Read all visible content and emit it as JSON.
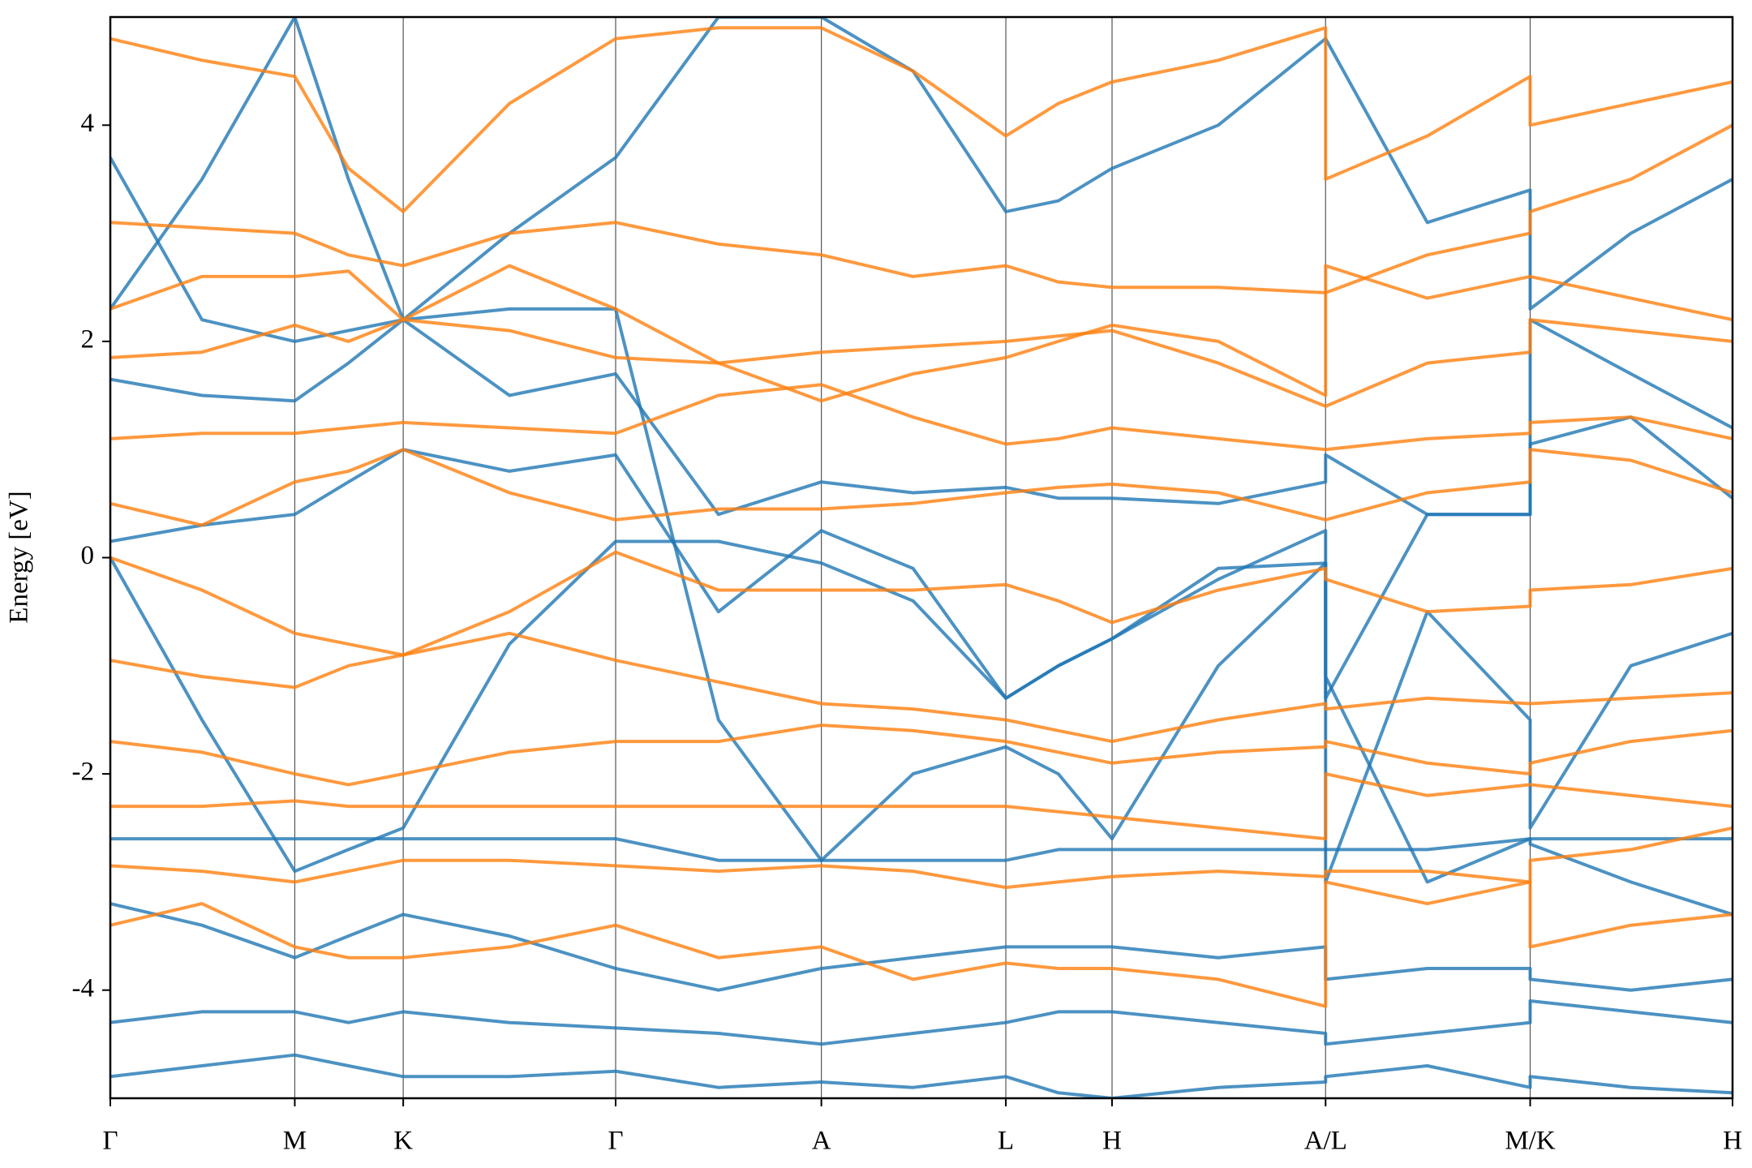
{
  "chart_data": {
    "type": "line",
    "ylabel": "Energy [eV]",
    "x": [
      0,
      82,
      165,
      213,
      262,
      357,
      452,
      544,
      636,
      718,
      801,
      848,
      896,
      991,
      1087,
      1087,
      1178,
      1270,
      1270,
      1360,
      1451
    ],
    "xlim": [
      0,
      1451
    ],
    "xticks": [
      {
        "value": 0,
        "label": "Γ"
      },
      {
        "value": 165,
        "label": "M"
      },
      {
        "value": 262,
        "label": "K"
      },
      {
        "value": 452,
        "label": "Γ"
      },
      {
        "value": 636,
        "label": "A"
      },
      {
        "value": 801,
        "label": "L"
      },
      {
        "value": 896,
        "label": "H"
      },
      {
        "value": 1087,
        "label": "A/L"
      },
      {
        "value": 1270,
        "label": "M/K"
      },
      {
        "value": 1451,
        "label": "H"
      }
    ],
    "ylim": [
      -5,
      5
    ],
    "yticks": [
      -4,
      -2,
      0,
      2,
      4
    ],
    "xgrid": true,
    "series": [
      {
        "color": "#1f77b4",
        "values": [
          0.15,
          0.3,
          0.4,
          0.7,
          1.0,
          0.8,
          0.95,
          -0.5,
          0.25,
          -0.1,
          -1.3,
          -1.0,
          -0.75,
          -0.2,
          0.25,
          -1.3,
          0.4,
          0.4,
          1.05,
          1.3,
          0.55
        ]
      },
      {
        "color": "#1f77b4",
        "values": [
          0,
          -1.5,
          -2.9,
          -2.7,
          -2.5,
          -0.8,
          0.15,
          0.15,
          -0.05,
          -0.4,
          -1.3,
          -1.0,
          -0.75,
          -0.1,
          -0.05,
          -3.0,
          -0.5,
          -1.5,
          -2.5,
          -1.0,
          -0.7
        ]
      },
      {
        "color": "#1f77b4",
        "values": [
          3.7,
          2.2,
          2.0,
          2.1,
          2.2,
          1.5,
          1.7,
          0.4,
          0.7,
          0.6,
          0.65,
          0.55,
          0.55,
          0.5,
          0.7,
          0.95,
          0.4,
          0.4,
          2.2,
          1.7,
          1.2
        ]
      },
      {
        "color": "#1f77b4",
        "values": [
          1.65,
          1.5,
          1.45,
          1.8,
          2.2,
          2.3,
          2.3,
          -1.5,
          -2.8,
          -2.0,
          -1.75,
          -2.0,
          -2.6,
          -1.0,
          -0.05,
          -1.1,
          -3.0,
          -2.6,
          -2.65,
          -3.0,
          -3.3
        ]
      },
      {
        "color": "#1f77b4",
        "values": [
          -2.6,
          -2.6,
          -2.6,
          -2.6,
          -2.6,
          -2.6,
          -2.6,
          -2.8,
          -2.8,
          -2.8,
          -2.8,
          -2.7,
          -2.7,
          -2.7,
          -2.7,
          -2.7,
          -2.7,
          -2.6,
          -2.6,
          -2.6,
          -2.6
        ]
      },
      {
        "color": "#1f77b4",
        "values": [
          -3.2,
          -3.4,
          -3.7,
          -3.5,
          -3.3,
          -3.5,
          -3.8,
          -4.0,
          -3.8,
          -3.7,
          -3.6,
          -3.6,
          -3.6,
          -3.7,
          -3.6,
          -3.9,
          -3.8,
          -3.8,
          -3.9,
          -4.0,
          -3.9
        ]
      },
      {
        "color": "#1f77b4",
        "values": [
          -4.3,
          -4.2,
          -4.2,
          -4.3,
          -4.2,
          -4.3,
          -4.35,
          -4.4,
          -4.5,
          -4.4,
          -4.3,
          -4.2,
          -4.2,
          -4.3,
          -4.4,
          -4.5,
          -4.4,
          -4.3,
          -4.1,
          -4.2,
          -4.3
        ]
      },
      {
        "color": "#1f77b4",
        "values": [
          -4.8,
          -4.7,
          -4.6,
          -4.7,
          -4.8,
          -4.8,
          -4.75,
          -4.9,
          -4.85,
          -4.9,
          -4.8,
          -4.95,
          -5,
          -4.9,
          -4.85,
          -4.8,
          -4.7,
          -4.9,
          -4.8,
          -4.9,
          -4.95
        ]
      },
      {
        "color": "#1f77b4",
        "values": [
          2.3,
          3.5,
          5.0,
          3.5,
          2.2,
          3.0,
          3.7,
          5,
          5,
          4.5,
          3.2,
          3.3,
          3.6,
          4.0,
          4.8,
          4.8,
          3.1,
          3.4,
          2.3,
          3.0,
          3.5
        ]
      },
      {
        "color": "#ff7f0e",
        "values": [
          0.5,
          0.3,
          0.7,
          0.8,
          1.0,
          0.6,
          0.35,
          0.45,
          0.45,
          0.5,
          0.6,
          0.65,
          0.68,
          0.6,
          0.35,
          0.35,
          0.6,
          0.7,
          1.0,
          0.9,
          0.6
        ]
      },
      {
        "color": "#ff7f0e",
        "values": [
          0,
          -0.3,
          -0.7,
          -0.8,
          -0.9,
          -0.5,
          0.05,
          -0.3,
          -0.3,
          -0.3,
          -0.25,
          -0.4,
          -0.6,
          -0.3,
          -0.1,
          -0.2,
          -0.5,
          -0.45,
          -0.3,
          -0.25,
          -0.1
        ]
      },
      {
        "color": "#ff7f0e",
        "values": [
          -0.95,
          -1.1,
          -1.2,
          -1.0,
          -0.9,
          -0.7,
          -0.95,
          -1.15,
          -1.35,
          -1.4,
          -1.5,
          -1.6,
          -1.7,
          -1.5,
          -1.35,
          -1.4,
          -1.3,
          -1.35,
          -1.35,
          -1.3,
          -1.25
        ]
      },
      {
        "color": "#ff7f0e",
        "values": [
          -1.7,
          -1.8,
          -2.0,
          -2.1,
          -2.0,
          -1.8,
          -1.7,
          -1.7,
          -1.55,
          -1.6,
          -1.7,
          -1.8,
          -1.9,
          -1.8,
          -1.75,
          -1.7,
          -1.9,
          -2.0,
          -1.9,
          -1.7,
          -1.6
        ]
      },
      {
        "color": "#ff7f0e",
        "values": [
          -2.3,
          -2.3,
          -2.25,
          -2.3,
          -2.3,
          -2.3,
          -2.3,
          -2.3,
          -2.3,
          -2.3,
          -2.3,
          -2.35,
          -2.4,
          -2.5,
          -2.6,
          -2.0,
          -2.2,
          -2.1,
          -2.1,
          -2.2,
          -2.3
        ]
      },
      {
        "color": "#ff7f0e",
        "values": [
          -2.85,
          -2.9,
          -3.0,
          -2.9,
          -2.8,
          -2.8,
          -2.85,
          -2.9,
          -2.85,
          -2.9,
          -3.05,
          -3.0,
          -2.95,
          -2.9,
          -2.95,
          -2.9,
          -2.9,
          -3.0,
          -2.8,
          -2.7,
          -2.5
        ]
      },
      {
        "color": "#ff7f0e",
        "values": [
          -3.4,
          -3.2,
          -3.6,
          -3.7,
          -3.7,
          -3.6,
          -3.4,
          -3.7,
          -3.6,
          -3.9,
          -3.75,
          -3.8,
          -3.8,
          -3.9,
          -4.15,
          -3.0,
          -3.2,
          -3.0,
          -3.6,
          -3.4,
          -3.3
        ]
      },
      {
        "color": "#ff7f0e",
        "values": [
          1.85,
          1.9,
          2.15,
          2.0,
          2.2,
          2.1,
          1.85,
          1.8,
          1.9,
          1.95,
          2.0,
          2.05,
          2.1,
          1.8,
          1.4,
          1.4,
          1.8,
          1.9,
          2.2,
          2.1,
          2.0
        ]
      },
      {
        "color": "#ff7f0e",
        "values": [
          2.3,
          2.6,
          2.6,
          2.65,
          2.2,
          2.7,
          2.3,
          1.8,
          1.45,
          1.7,
          1.85,
          2.0,
          2.15,
          2.0,
          1.5,
          2.7,
          2.4,
          2.6,
          2.6,
          2.4,
          2.2
        ]
      },
      {
        "color": "#ff7f0e",
        "values": [
          3.1,
          3.05,
          3.0,
          2.8,
          2.7,
          3.0,
          3.1,
          2.9,
          2.8,
          2.6,
          2.7,
          2.55,
          2.5,
          2.5,
          2.45,
          2.45,
          2.8,
          3.0,
          3.2,
          3.5,
          4.0
        ]
      },
      {
        "color": "#ff7f0e",
        "values": [
          4.8,
          4.6,
          4.45,
          3.6,
          3.2,
          4.2,
          4.8,
          4.9,
          4.9,
          4.5,
          3.9,
          4.2,
          4.4,
          4.6,
          4.9,
          3.5,
          3.9,
          4.45,
          4.0,
          4.2,
          4.4
        ]
      },
      {
        "color": "#ff7f0e",
        "values": [
          1.1,
          1.15,
          1.15,
          1.2,
          1.25,
          1.2,
          1.15,
          1.5,
          1.6,
          1.3,
          1.05,
          1.1,
          1.2,
          1.1,
          1.0,
          1.0,
          1.1,
          1.15,
          1.25,
          1.3,
          1.1
        ]
      }
    ]
  }
}
